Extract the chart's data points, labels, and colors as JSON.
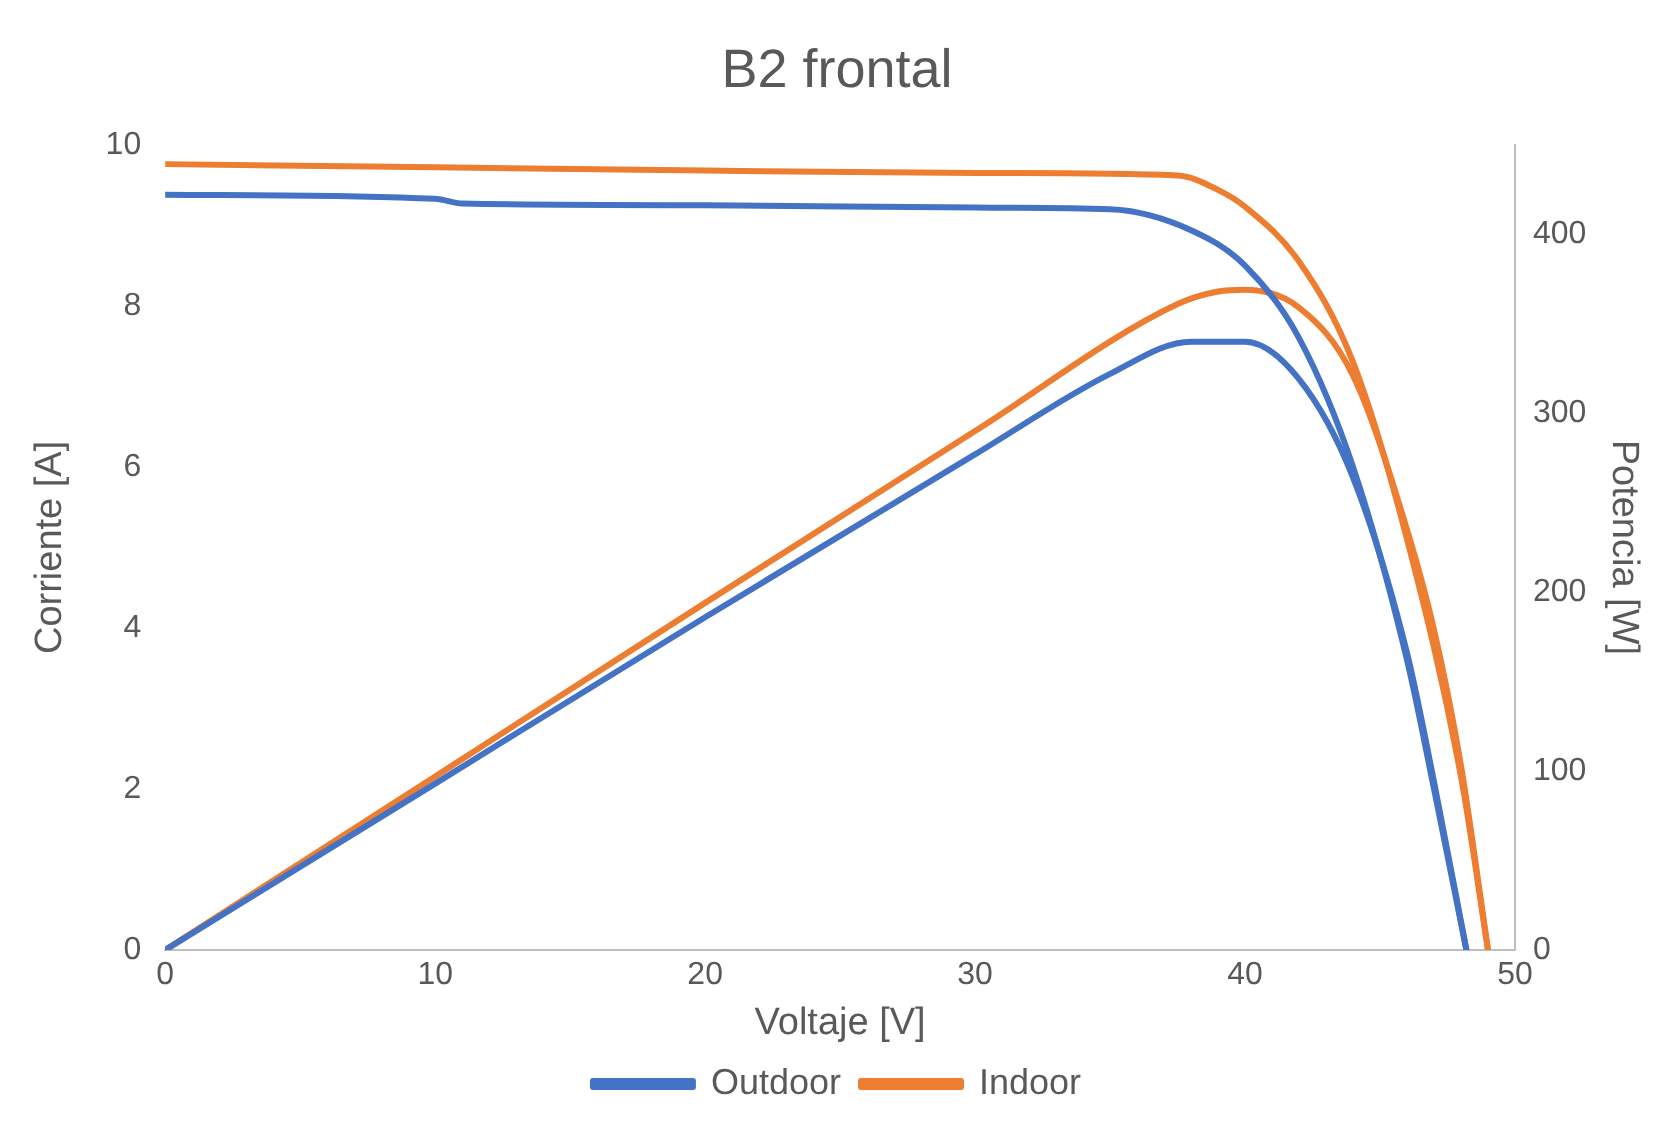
{
  "chart_data": {
    "type": "line",
    "title": "B2 frontal",
    "xlabel": "Voltaje [V]",
    "ylabel": "Corriente [A]",
    "y2label": "Potencia [W]",
    "xlim": [
      0,
      50
    ],
    "xticks": [
      0,
      10,
      20,
      30,
      40,
      50
    ],
    "ylim": [
      0,
      10
    ],
    "yticks": [
      0,
      2,
      4,
      6,
      8,
      10
    ],
    "y2lim": [
      0,
      450
    ],
    "y2ticks": [
      0,
      100,
      200,
      300,
      400
    ],
    "grid": false,
    "legend": "bottom",
    "marker": "none",
    "line_style": "solid",
    "series": [
      {
        "name": "Outdoor",
        "color": "#4472c4",
        "x": [
          0,
          10,
          11,
          20,
          30,
          35,
          38,
          40,
          42,
          44,
          46,
          47,
          48.2
        ],
        "values": [
          9.38,
          9.33,
          9.27,
          9.25,
          9.22,
          9.2,
          8.94,
          8.5,
          7.6,
          6.0,
          3.6,
          2.0,
          0
        ]
      },
      {
        "name": "Indoor",
        "color": "#ed7d31",
        "x": [
          0,
          10,
          20,
          30,
          37.5,
          39,
          40,
          42,
          44,
          46,
          48,
          49
        ],
        "values": [
          9.76,
          9.72,
          9.68,
          9.65,
          9.62,
          9.44,
          9.23,
          8.55,
          7.3,
          5.1,
          2.15,
          0
        ]
      },
      {
        "color": "#4472c4",
        "axis": "y2",
        "x": [
          0,
          10,
          20,
          30,
          35,
          38,
          40,
          42,
          44,
          46,
          47,
          48.2
        ],
        "values": [
          0,
          93,
          186,
          277,
          322,
          340,
          340,
          319,
          264,
          166,
          94,
          0
        ]
      },
      {
        "color": "#ed7d31",
        "axis": "y2",
        "x": [
          0,
          10,
          20,
          30,
          37.5,
          39,
          40,
          42,
          44,
          46,
          47,
          48,
          49
        ],
        "values": [
          0,
          97,
          194,
          290,
          361,
          368,
          369,
          359,
          321,
          235,
          179,
          103,
          0
        ]
      }
    ]
  }
}
